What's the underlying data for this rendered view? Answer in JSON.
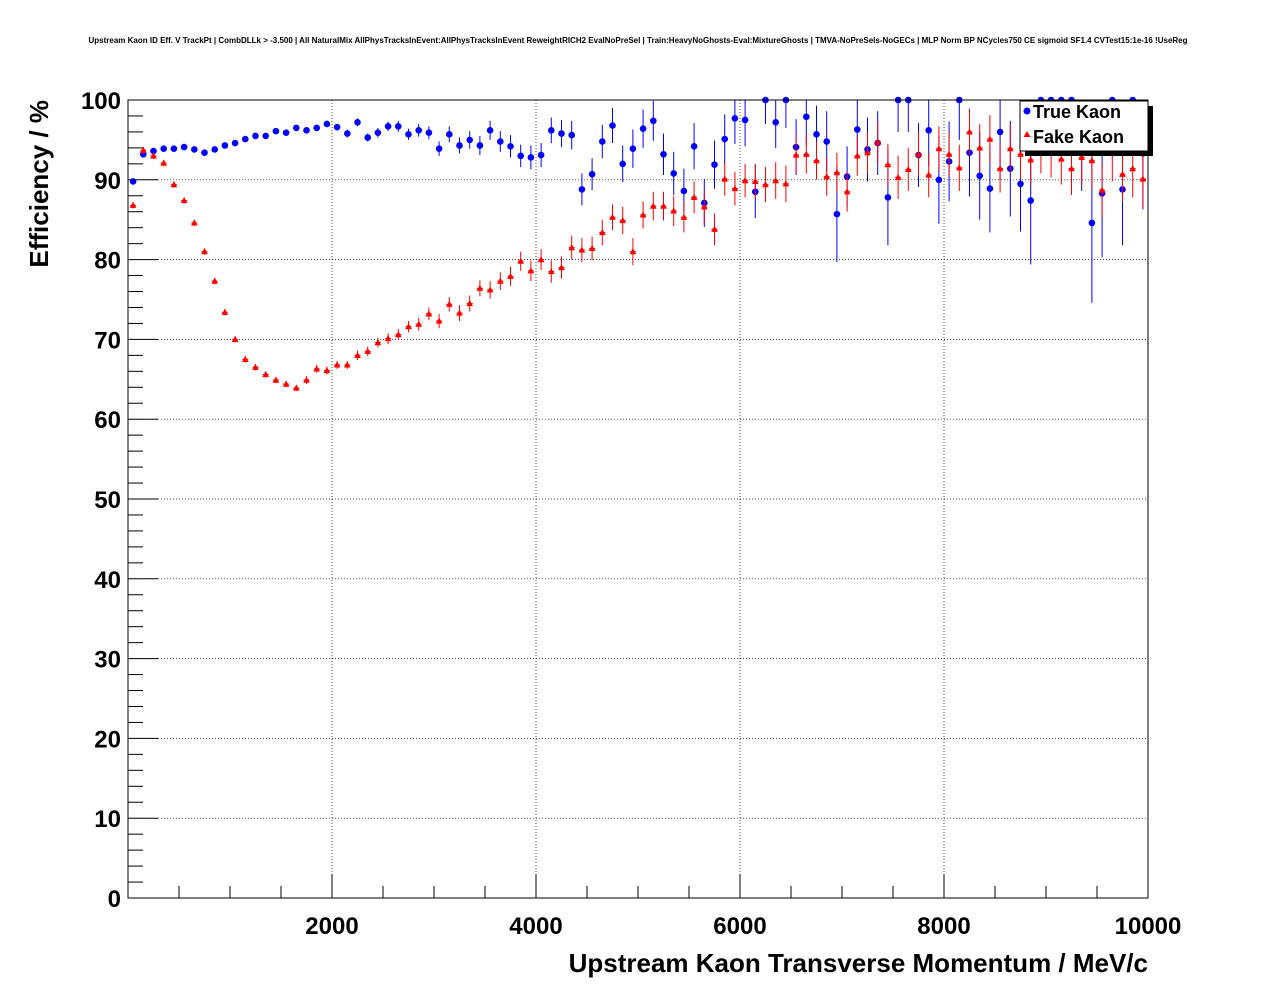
{
  "chart_data": {
    "type": "scatter",
    "title": "Upstream Kaon ID Eff. V TrackPt | CombDLLk > -3.500 | All NaturalMix AllPhysTracksInEvent:AllPhysTracksInEvent ReweightRICH2 EvalNoPreSel | Train:HeavyNoGhosts-Eval:MixtureGhosts | TMVA-NoPreSels-NoGECs | MLP Norm BP NCycles750 CE sigmoid SF1.4 CVTest15:1e-16 !UseReg",
    "xlabel": "Upstream Kaon Transverse Momentum / MeV/c",
    "ylabel": "Efficiency / %",
    "xlim": [
      0,
      10000
    ],
    "ylim": [
      0,
      100
    ],
    "grid": true,
    "legend_position": "top-right",
    "x_ticks": [
      "2000",
      "4000",
      "6000",
      "8000",
      "10000"
    ],
    "y_ticks": [
      "0",
      "10",
      "20",
      "30",
      "40",
      "50",
      "60",
      "70",
      "80",
      "90",
      "100"
    ],
    "series": [
      {
        "name": "True Kaon",
        "color": "#0000ff",
        "marker": "circle",
        "x": [
          50,
          150,
          250,
          350,
          450,
          550,
          650,
          750,
          850,
          950,
          1050,
          1150,
          1250,
          1350,
          1450,
          1550,
          1650,
          1750,
          1850,
          1950,
          2050,
          2150,
          2250,
          2350,
          2450,
          2550,
          2650,
          2750,
          2850,
          2950,
          3050,
          3150,
          3250,
          3350,
          3450,
          3550,
          3650,
          3750,
          3850,
          3950,
          4050,
          4150,
          4250,
          4350,
          4450,
          4550,
          4650,
          4750,
          4850,
          4950,
          5050,
          5150,
          5250,
          5350,
          5450,
          5550,
          5650,
          5750,
          5850,
          5950,
          6050,
          6150,
          6250,
          6350,
          6450,
          6550,
          6650,
          6750,
          6850,
          6950,
          7050,
          7150,
          7250,
          7350,
          7450,
          7550,
          7650,
          7750,
          7850,
          7950,
          8050,
          8150,
          8250,
          8350,
          8450,
          8550,
          8650,
          8750,
          8850,
          8950,
          9050,
          9150,
          9250,
          9350,
          9450,
          9550,
          9650,
          9750,
          9850,
          9950
        ],
        "values": [
          89.8,
          93.2,
          93.6,
          93.9,
          93.9,
          94.1,
          93.8,
          93.4,
          93.8,
          94.3,
          94.6,
          95.1,
          95.5,
          95.5,
          96.1,
          95.9,
          96.5,
          96.2,
          96.5,
          97.0,
          96.6,
          95.8,
          97.2,
          95.3,
          95.9,
          96.7,
          96.7,
          95.7,
          96.2,
          95.9,
          93.9,
          95.7,
          94.3,
          95.0,
          94.3,
          96.2,
          94.8,
          94.2,
          93.0,
          92.8,
          93.1,
          96.2,
          95.8,
          95.6,
          88.8,
          90.7,
          94.8,
          96.8,
          92.0,
          93.9,
          96.4,
          97.4,
          93.2,
          90.8,
          88.6,
          94.2,
          87.1,
          91.9,
          95.1,
          97.7,
          97.5,
          88.5,
          100,
          97.2,
          100,
          94.1,
          97.9,
          95.7,
          94.8,
          85.7,
          90.4,
          96.3,
          93.8,
          94.6,
          87.8,
          100,
          100,
          93.1,
          96.2,
          90.0,
          92.3,
          100,
          93.4,
          90.5,
          88.9,
          96.0,
          91.4,
          89.5,
          87.4,
          100,
          100,
          100,
          100,
          94.6,
          84.6,
          88.3,
          100,
          88.8,
          100,
          93.3
        ],
        "errors": [
          0.3,
          0.3,
          0.3,
          0.3,
          0.3,
          0.3,
          0.3,
          0.3,
          0.3,
          0.3,
          0.3,
          0.3,
          0.3,
          0.3,
          0.3,
          0.3,
          0.3,
          0.3,
          0.4,
          0.4,
          0.4,
          0.5,
          0.5,
          0.5,
          0.6,
          0.6,
          0.7,
          0.7,
          0.8,
          0.8,
          0.9,
          1.0,
          1.0,
          1.1,
          1.2,
          1.2,
          1.3,
          1.4,
          1.4,
          1.5,
          1.5,
          1.6,
          1.7,
          1.8,
          2.0,
          2.0,
          2.1,
          2.2,
          2.3,
          2.4,
          2.4,
          2.5,
          2.6,
          2.7,
          2.8,
          2.9,
          3.0,
          3.0,
          3.1,
          3.2,
          3.3,
          3.3,
          3.0,
          3.2,
          3.5,
          3.5,
          3.6,
          3.6,
          3.8,
          6.0,
          3.8,
          3.8,
          4.0,
          4.0,
          6.0,
          4.0,
          4.0,
          4.0,
          4.5,
          5.5,
          5.0,
          5.0,
          5.5,
          5.5,
          5.5,
          6.0,
          6.0,
          6.0,
          8.0,
          6.0,
          6.0,
          6.0,
          6.0,
          6.0,
          10.0,
          8.0,
          6.0,
          7.0,
          6.0,
          7.0
        ]
      },
      {
        "name": "Fake Kaon",
        "color": "#ff0000",
        "marker": "triangle",
        "x": [
          50,
          150,
          250,
          350,
          450,
          550,
          650,
          750,
          850,
          950,
          1050,
          1150,
          1250,
          1350,
          1450,
          1550,
          1650,
          1750,
          1850,
          1950,
          2050,
          2150,
          2250,
          2350,
          2450,
          2550,
          2650,
          2750,
          2850,
          2950,
          3050,
          3150,
          3250,
          3350,
          3450,
          3550,
          3650,
          3750,
          3850,
          3950,
          4050,
          4150,
          4250,
          4350,
          4450,
          4550,
          4650,
          4750,
          4850,
          4950,
          5050,
          5150,
          5250,
          5350,
          5450,
          5550,
          5650,
          5750,
          5850,
          5950,
          6050,
          6150,
          6250,
          6350,
          6450,
          6550,
          6650,
          6750,
          6850,
          6950,
          7050,
          7150,
          7250,
          7350,
          7450,
          7550,
          7650,
          7750,
          7850,
          7950,
          8050,
          8150,
          8250,
          8350,
          8450,
          8550,
          8650,
          8750,
          8850,
          8950,
          9050,
          9150,
          9250,
          9350,
          9450,
          9550,
          9650,
          9750,
          9850,
          9950
        ],
        "values": [
          86.8,
          93.7,
          93.0,
          92.1,
          89.4,
          87.4,
          84.6,
          81.0,
          77.3,
          73.4,
          70.0,
          67.5,
          66.5,
          65.6,
          64.9,
          64.4,
          63.9,
          64.9,
          66.3,
          66.1,
          66.8,
          66.8,
          68.0,
          68.5,
          69.6,
          70.1,
          70.6,
          71.6,
          71.9,
          73.2,
          72.3,
          74.4,
          73.3,
          74.5,
          76.4,
          76.2,
          77.3,
          77.9,
          79.8,
          78.6,
          80.0,
          78.5,
          79.0,
          81.5,
          81.2,
          81.4,
          83.4,
          85.3,
          84.9,
          81.0,
          85.6,
          86.7,
          86.7,
          86.1,
          85.3,
          87.8,
          86.6,
          83.8,
          90.1,
          88.9,
          89.9,
          89.8,
          89.4,
          89.9,
          89.5,
          93.1,
          93.2,
          92.4,
          90.4,
          90.9,
          88.5,
          93.0,
          93.4,
          94.7,
          91.9,
          90.3,
          91.3,
          93.2,
          90.6,
          93.9,
          93.2,
          91.5,
          96.0,
          94.0,
          95.1,
          91.4,
          93.9,
          93.2,
          92.5,
          94.0,
          93.5,
          92.6,
          91.4,
          92.8,
          92.4,
          88.7,
          93.3,
          90.7,
          91.4,
          90.1
        ],
        "errors": [
          0.4,
          0.4,
          0.4,
          0.4,
          0.4,
          0.4,
          0.4,
          0.4,
          0.4,
          0.4,
          0.4,
          0.4,
          0.4,
          0.4,
          0.4,
          0.4,
          0.4,
          0.5,
          0.5,
          0.5,
          0.5,
          0.5,
          0.6,
          0.6,
          0.6,
          0.7,
          0.7,
          0.7,
          0.8,
          0.8,
          0.9,
          0.9,
          1.0,
          1.0,
          1.0,
          1.1,
          1.1,
          1.2,
          1.2,
          1.3,
          1.3,
          1.4,
          1.4,
          1.5,
          1.5,
          1.5,
          1.6,
          1.6,
          1.7,
          1.7,
          1.7,
          1.8,
          1.8,
          1.9,
          1.9,
          2.0,
          2.0,
          2.0,
          2.1,
          2.1,
          2.1,
          2.2,
          2.2,
          2.3,
          2.3,
          2.3,
          2.4,
          2.4,
          2.4,
          2.5,
          2.5,
          2.5,
          2.6,
          2.6,
          2.6,
          2.7,
          2.7,
          2.7,
          2.8,
          2.8,
          2.8,
          2.9,
          2.9,
          3.0,
          3.0,
          3.0,
          3.0,
          3.1,
          3.1,
          3.2,
          3.2,
          3.2,
          3.3,
          3.3,
          3.4,
          3.4,
          3.5,
          3.5,
          3.6,
          3.6
        ]
      }
    ]
  }
}
